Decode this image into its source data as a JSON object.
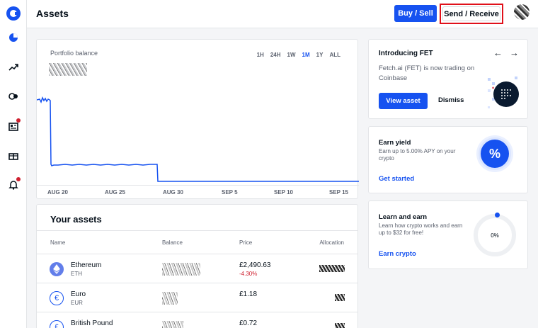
{
  "header": {
    "title": "Assets",
    "buy_sell_label": "Buy / Sell",
    "send_receive_label": "Send / Receive"
  },
  "sidebar": {
    "items": [
      {
        "icon": "portfolio-icon",
        "badge": false
      },
      {
        "icon": "trade-icon",
        "badge": false
      },
      {
        "icon": "earn-icon",
        "badge": false
      },
      {
        "icon": "news-icon",
        "badge": true
      },
      {
        "icon": "gift-icon",
        "badge": false
      },
      {
        "icon": "bell-icon",
        "badge": true
      }
    ]
  },
  "portfolio": {
    "label": "Portfolio balance",
    "ranges": [
      "1H",
      "24H",
      "1W",
      "1M",
      "1Y",
      "ALL"
    ],
    "active_range": "1M",
    "x_labels": [
      "AUG 20",
      "AUG 25",
      "AUG 30",
      "SEP 5",
      "SEP 10",
      "SEP 15"
    ],
    "line_color": "#1652f0"
  },
  "assets": {
    "title": "Your assets",
    "columns": [
      "Name",
      "Balance",
      "Price",
      "Allocation"
    ],
    "rows": [
      {
        "name": "Ethereum",
        "symbol": "ETH",
        "price": "£2,490.63",
        "change": "-4.30%",
        "icon_color": "#627eea",
        "icon": "ethereum-icon"
      },
      {
        "name": "Euro",
        "symbol": "EUR",
        "price": "£1.18",
        "change": "",
        "icon_color": "#1652f0",
        "icon": "euro-icon"
      },
      {
        "name": "British Pound",
        "symbol": "",
        "price": "£0.72",
        "change": "",
        "icon_color": "#1652f0",
        "icon": "pound-icon"
      }
    ]
  },
  "promo_fet": {
    "title": "Introducing FET",
    "description": "Fetch.ai (FET) is now trading on Coinbase",
    "view_label": "View asset",
    "dismiss_label": "Dismiss"
  },
  "earn_yield": {
    "title": "Earn yield",
    "description": "Earn up to 5.00% APY on your crypto",
    "link": "Get started",
    "badge": "%"
  },
  "learn_earn": {
    "title": "Learn and earn",
    "description": "Learn how crypto works and earn up to $32 for free!",
    "link": "Earn crypto",
    "progress": "0%"
  },
  "colors": {
    "brand": "#1652f0",
    "negative": "#cf202f"
  }
}
